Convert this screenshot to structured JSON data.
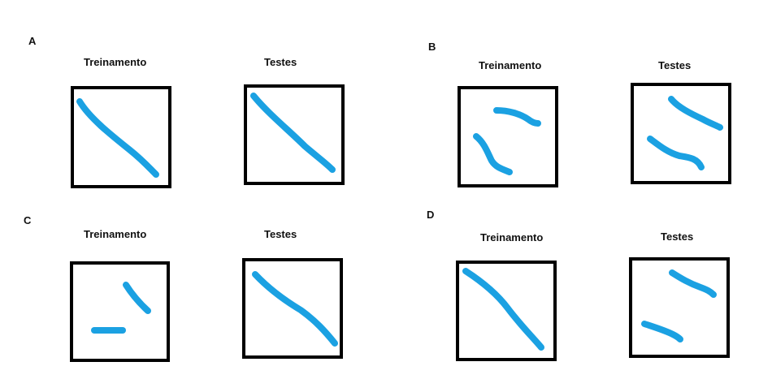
{
  "panels": [
    {
      "letter": "A",
      "left_title": "Treinamento",
      "right_title": "Testes"
    },
    {
      "letter": "B",
      "left_title": "Treinamento",
      "right_title": "Testes"
    },
    {
      "letter": "C",
      "left_title": "Treinamento",
      "right_title": "Testes"
    },
    {
      "letter": "D",
      "left_title": "Treinamento",
      "right_title": "Testes"
    }
  ],
  "colors": {
    "box_border": "#000000",
    "stroke": "#1ba1e2"
  }
}
